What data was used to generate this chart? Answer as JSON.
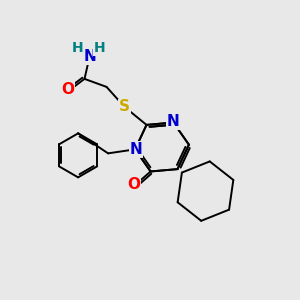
{
  "bg_color": "#e8e8e8",
  "atom_colors": {
    "N": "#0000cc",
    "O": "#ff0000",
    "S": "#ccaa00",
    "C": "#000000",
    "H": "#008080"
  },
  "font_size": 11
}
